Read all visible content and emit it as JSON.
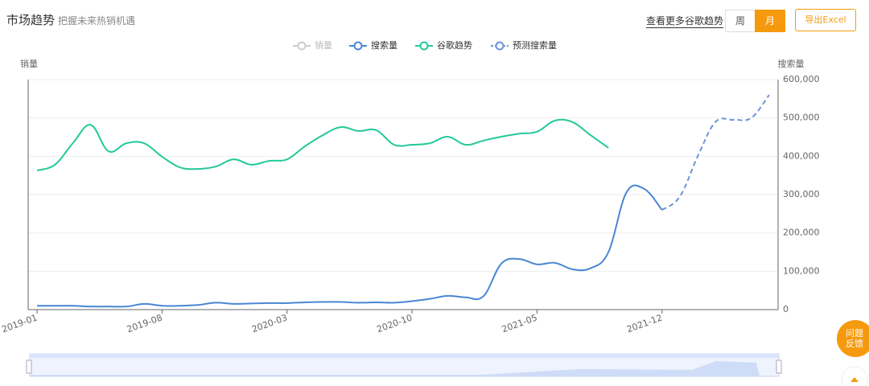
{
  "header": {
    "title": "市场趋势",
    "subtitle": "把握未来热销机遇",
    "link": "查看更多谷歌趋势",
    "tabs": [
      "周",
      "月"
    ],
    "active_tab": 1,
    "export": "导出Excel"
  },
  "feedback": "问题反馈",
  "chart_data": {
    "type": "line",
    "y_label_left": "销量",
    "y_label_right": "搜索量",
    "categories": [
      "2019-01",
      null,
      null,
      null,
      null,
      null,
      null,
      "2019-08",
      null,
      null,
      null,
      null,
      null,
      null,
      "2020-03",
      null,
      null,
      null,
      null,
      null,
      null,
      "2020-10",
      null,
      null,
      null,
      null,
      null,
      null,
      "2021-05",
      null,
      null,
      null,
      null,
      null,
      null,
      "2021-12",
      null,
      null,
      null,
      null,
      null,
      null
    ],
    "series": [
      {
        "name": "销量",
        "color": "#c8c8c8",
        "hidden": true,
        "values": [
          null,
          null,
          null,
          null,
          null,
          null,
          null,
          null,
          null,
          null,
          null,
          null,
          null,
          null,
          null,
          null,
          null,
          null,
          null,
          null,
          null,
          null,
          null,
          null,
          null,
          null,
          null,
          null,
          null,
          null,
          null,
          null,
          null,
          null,
          null,
          null,
          null,
          null,
          null,
          null,
          null,
          null
        ]
      },
      {
        "name": "搜索量",
        "color": "#4a86d4",
        "values": [
          10000,
          10000,
          10000,
          8000,
          8000,
          8000,
          15000,
          10000,
          10000,
          12000,
          18000,
          15000,
          16000,
          17000,
          17000,
          19000,
          20000,
          20000,
          18000,
          19000,
          18000,
          22000,
          28000,
          36000,
          32000,
          35000,
          120000,
          132000,
          118000,
          122000,
          105000,
          108000,
          150000,
          305000,
          315000,
          260000,
          null,
          null,
          null,
          null,
          null,
          null
        ]
      },
      {
        "name": "谷歌趋势",
        "color": "#22c99a",
        "values": [
          363000,
          378000,
          434000,
          482000,
          413000,
          434000,
          434000,
          399000,
          371000,
          367000,
          373000,
          392000,
          378000,
          388000,
          392000,
          426000,
          455000,
          476000,
          466000,
          468000,
          430000,
          430000,
          434000,
          451000,
          430000,
          441000,
          451000,
          459000,
          464000,
          493000,
          489000,
          455000,
          422000,
          null,
          null,
          null,
          null,
          null,
          null,
          null,
          null,
          null
        ]
      },
      {
        "name": "预测搜索量",
        "color": "#6a95d8",
        "dashed": true,
        "values": [
          null,
          null,
          null,
          null,
          null,
          null,
          null,
          null,
          null,
          null,
          null,
          null,
          null,
          null,
          null,
          null,
          null,
          null,
          null,
          null,
          null,
          null,
          null,
          null,
          null,
          null,
          null,
          null,
          null,
          null,
          null,
          null,
          null,
          null,
          null,
          260000,
          295000,
          400000,
          490000,
          495000,
          500000,
          560000
        ]
      }
    ],
    "ylim": [
      0,
      600000
    ],
    "yticks": [
      0,
      {
        "value": 100000,
        "label": "100,000"
      },
      {
        "value": 200000,
        "label": "200,000"
      },
      {
        "value": 300000,
        "label": "300,000"
      },
      {
        "value": 400000,
        "label": "400,000"
      },
      {
        "value": 500000,
        "label": "500,000"
      },
      {
        "value": 600000,
        "label": "600,000"
      }
    ],
    "grid": true,
    "smooth": true,
    "legend": "top"
  }
}
